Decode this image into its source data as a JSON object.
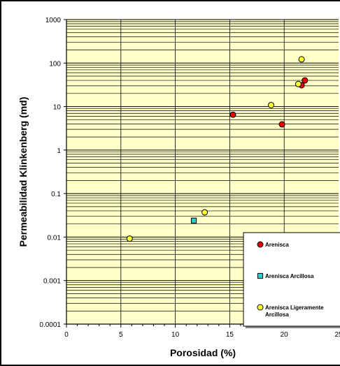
{
  "chart_data": {
    "type": "scatter",
    "title": "",
    "xlabel": "Porosidad (%)",
    "ylabel": "Permeabilidad Klinkenberg (md)",
    "xlim": [
      0,
      25
    ],
    "ylim": [
      0.0001,
      1000
    ],
    "yscale": "log",
    "grid": true,
    "plot_background": "#ffffc8",
    "x_ticks": [
      "0",
      "5",
      "10",
      "15",
      "20",
      "25"
    ],
    "y_ticks": [
      "0.0001",
      "0.001",
      "0.01",
      "0.1",
      "1",
      "10",
      "100",
      "1000"
    ],
    "legend_position": "bottom-right",
    "series": [
      {
        "name": "Arenisca",
        "color": "#e60000",
        "marker": "circle",
        "points": [
          [
            15.3,
            6.5
          ],
          [
            19.8,
            3.9
          ],
          [
            21.6,
            31
          ],
          [
            21.9,
            40
          ]
        ]
      },
      {
        "name": "Arenisca Arcillosa",
        "color": "#33cccc",
        "marker": "square",
        "points": [
          [
            11.7,
            0.024
          ]
        ]
      },
      {
        "name": "Arenisca Ligeramente Arcillosa",
        "legend_lines": [
          "Arenisca Ligeramente",
          "Arcillosa"
        ],
        "color": "#ffff33",
        "marker": "circle",
        "points": [
          [
            5.8,
            0.0092
          ],
          [
            12.7,
            0.037
          ],
          [
            18.8,
            10.8
          ],
          [
            21.3,
            33
          ],
          [
            21.6,
            122
          ]
        ]
      }
    ]
  }
}
